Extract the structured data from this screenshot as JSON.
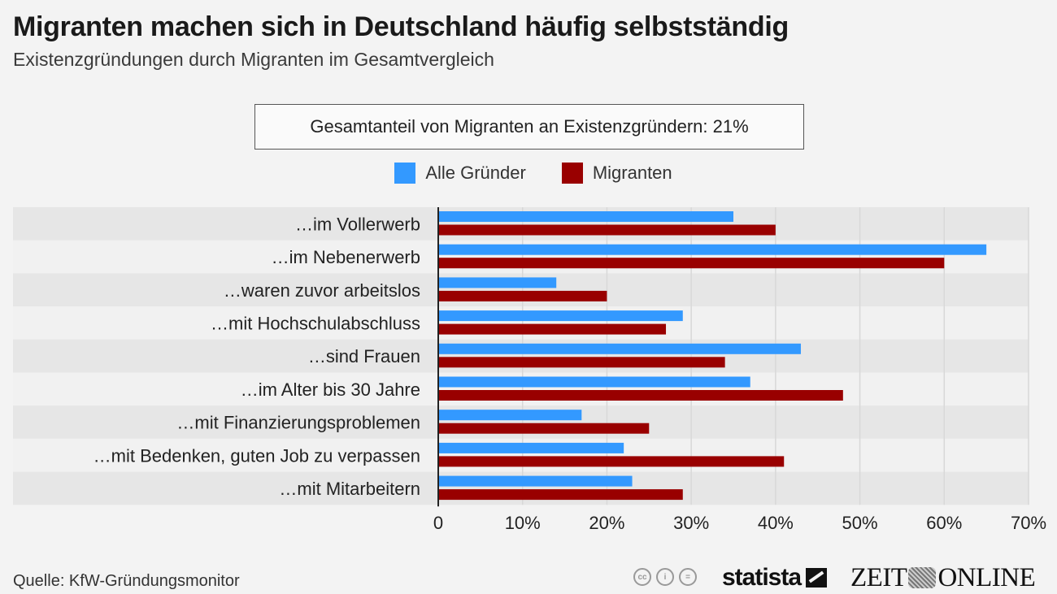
{
  "header": {
    "title": "Migranten machen sich in Deutschland häufig selbstständig",
    "subtitle": "Existenzgründungen durch Migranten im Gesamtvergleich"
  },
  "note": "Gesamtanteil von Migranten an Existenzgründern: 21%",
  "legend": [
    {
      "label": "Alle Gründer",
      "color": "#3399ff"
    },
    {
      "label": "Migranten",
      "color": "#990000"
    }
  ],
  "footer": {
    "source": "Quelle: KfW-Gründungsmonitor",
    "license_icons": [
      "cc-icon",
      "by-icon",
      "nd-icon"
    ],
    "license_glyphs": [
      "cc",
      "i",
      "="
    ],
    "brand_statista": "statista",
    "brand_zeit_left": "ZEIT",
    "brand_zeit_right": "ONLINE"
  },
  "chart_data": {
    "type": "bar",
    "orientation": "horizontal",
    "title": "Migranten machen sich in Deutschland häufig selbstständig",
    "subtitle": "Existenzgründungen durch Migranten im Gesamtvergleich",
    "xlabel": "",
    "ylabel": "",
    "xlim": [
      0,
      70
    ],
    "x_unit": "%",
    "x_ticks": [
      0,
      10,
      20,
      30,
      40,
      50,
      60,
      70
    ],
    "x_tick_labels": [
      "0",
      "10%",
      "20%",
      "30%",
      "40%",
      "50%",
      "60%",
      "70%"
    ],
    "grid": true,
    "legend_position": "top-center",
    "categories": [
      "…im Vollerwerb",
      "…im Nebenerwerb",
      "…waren zuvor arbeitslos",
      "…mit Hochschulabschluss",
      "…sind Frauen",
      "…im Alter bis 30 Jahre",
      "…mit Finanzierungsproblemen",
      "…mit Bedenken, guten Job zu verpassen",
      "…mit Mitarbeitern"
    ],
    "series": [
      {
        "name": "Alle Gründer",
        "color": "#3399ff",
        "values": [
          35,
          65,
          14,
          29,
          43,
          37,
          17,
          22,
          23
        ]
      },
      {
        "name": "Migranten",
        "color": "#990000",
        "values": [
          40,
          60,
          20,
          27,
          34,
          48,
          25,
          41,
          29
        ]
      }
    ]
  }
}
